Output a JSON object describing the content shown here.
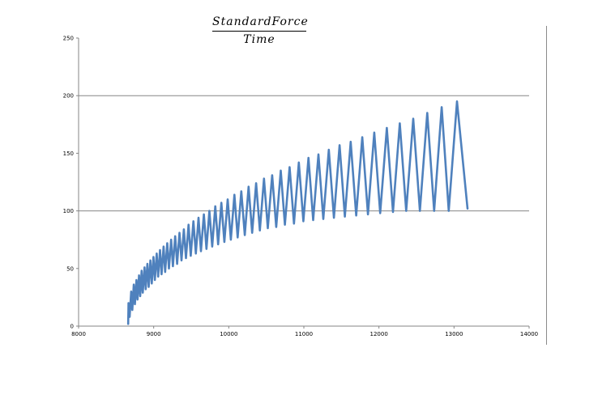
{
  "chart_data": {
    "type": "line",
    "title": {
      "numerator": "StandardForce",
      "denominator": "Time"
    },
    "xlabel": "",
    "ylabel": "",
    "xlim": [
      8000,
      14000
    ],
    "ylim": [
      0,
      250
    ],
    "x_ticks": [
      8000,
      9000,
      10000,
      11000,
      12000,
      13000,
      14000
    ],
    "y_ticks": [
      0,
      50,
      100,
      150,
      200,
      250
    ],
    "x_tick_labels": [
      "8000",
      "9000",
      "10000",
      "11000",
      "12000",
      "13000",
      "14000"
    ],
    "y_tick_labels": [
      "0",
      "50",
      "100",
      "150",
      "200",
      "250"
    ],
    "gridlines_y": [
      100,
      200
    ],
    "legend": "none",
    "series": [
      {
        "color": "#4f81bd",
        "x": [
          8660,
          8665,
          8680,
          8700,
          8715,
          8735,
          8750,
          8770,
          8785,
          8805,
          8820,
          8840,
          8855,
          8878,
          8894,
          8916,
          8933,
          8956,
          8974,
          8997,
          9015,
          9040,
          9060,
          9085,
          9105,
          9132,
          9153,
          9181,
          9203,
          9232,
          9256,
          9286,
          9312,
          9343,
          9370,
          9402,
          9430,
          9464,
          9494,
          9529,
          9561,
          9597,
          9630,
          9668,
          9703,
          9742,
          9779,
          9820,
          9858,
          9901,
          9941,
          9986,
          10028,
          10075,
          10118,
          10167,
          10213,
          10264,
          10311,
          10364,
          10414,
          10469,
          10520,
          10578,
          10632,
          10692,
          10748,
          10810,
          10868,
          10933,
          10994,
          11061,
          11124,
          11194,
          11259,
          11332,
          11400,
          11476,
          11546,
          11624,
          11697,
          11778,
          11854,
          11938,
          12017,
          12105,
          12187,
          12278,
          12363,
          12457,
          12545,
          12643,
          12735,
          12836,
          12930,
          13040,
          13180
        ],
        "y": [
          2,
          20,
          8,
          30,
          14,
          36,
          19,
          40,
          23,
          44,
          26,
          48,
          29,
          51,
          32,
          54,
          34,
          57,
          37,
          60,
          40,
          63,
          43,
          66,
          45,
          69,
          47,
          72,
          50,
          75,
          52,
          78,
          54,
          81,
          57,
          84,
          59,
          88,
          61,
          91,
          63,
          94,
          65,
          97,
          67,
          100,
          69,
          104,
          71,
          107,
          73,
          110,
          75,
          114,
          77,
          117,
          79,
          121,
          81,
          124,
          83,
          128,
          85,
          131,
          86,
          135,
          88,
          138,
          89,
          142,
          91,
          146,
          92,
          149,
          93,
          153,
          94,
          157,
          95,
          160,
          96,
          164,
          97,
          168,
          98,
          172,
          99,
          176,
          100,
          180,
          100,
          185,
          100,
          190,
          100,
          195,
          102
        ]
      }
    ]
  }
}
